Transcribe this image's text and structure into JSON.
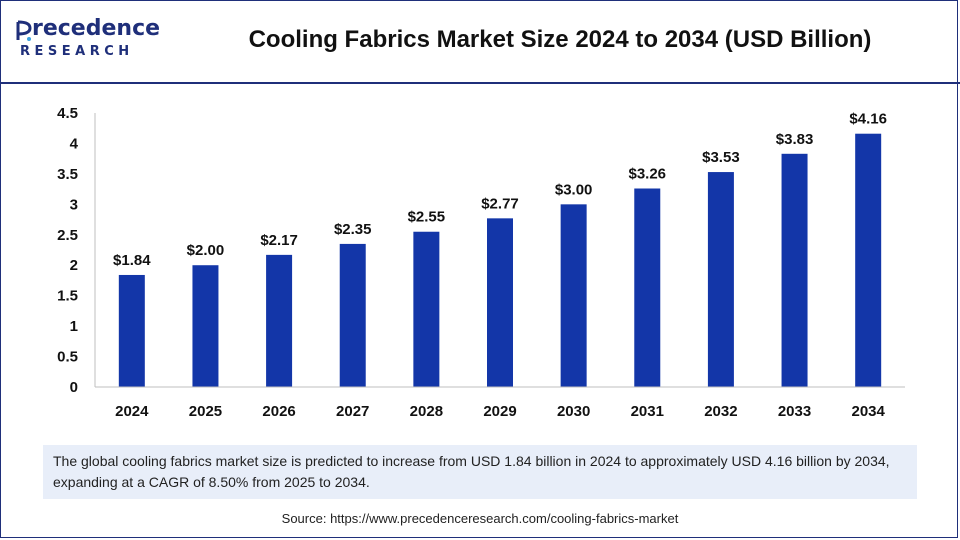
{
  "brand": {
    "line1": "recedence",
    "line2": "RESEARCH",
    "color": "#1f2f7a"
  },
  "header": {
    "title": "Cooling Fabrics Market Size 2024 to 2034 (USD Billion)"
  },
  "chart_data": {
    "type": "bar",
    "categories": [
      "2024",
      "2025",
      "2026",
      "2027",
      "2028",
      "2029",
      "2030",
      "2031",
      "2032",
      "2033",
      "2034"
    ],
    "values": [
      1.84,
      2.0,
      2.17,
      2.35,
      2.55,
      2.77,
      3.0,
      3.26,
      3.53,
      3.83,
      4.16
    ],
    "data_labels": [
      "$1.84",
      "$2.00",
      "$2.17",
      "$2.35",
      "$2.55",
      "$2.77",
      "$3.00",
      "$3.26",
      "$3.53",
      "$3.83",
      "$4.16"
    ],
    "yticks": [
      "0",
      "0.5",
      "1",
      "1.5",
      "2",
      "2.5",
      "3",
      "3.5",
      "4",
      "4.5"
    ],
    "ylim": [
      0,
      4.5
    ],
    "grid": false,
    "bar_color": "#1336a8"
  },
  "description": "The global cooling fabrics market size is predicted to increase from USD 1.84 billion in 2024 to approximately USD 4.16 billion by 2034, expanding at a CAGR of 8.50% from 2025 to 2034.",
  "source": "Source: https://www.precedenceresearch.com/cooling-fabrics-market"
}
